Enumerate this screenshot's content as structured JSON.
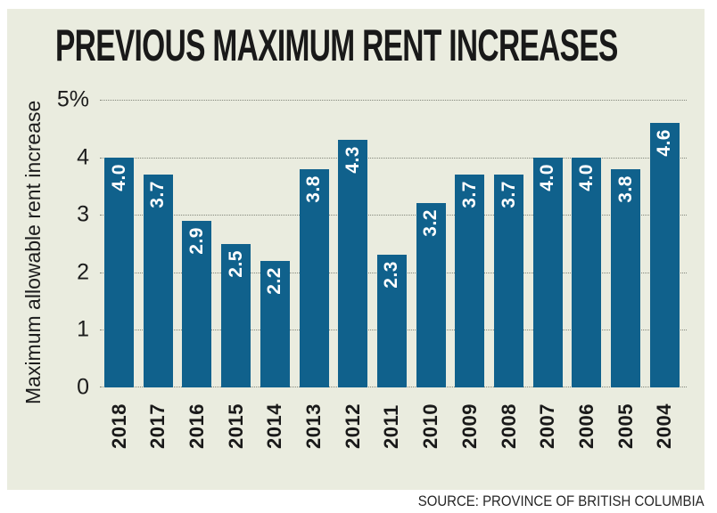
{
  "title": "PREVIOUS MAXIMUM RENT INCREASES",
  "source": "SOURCE: PROVINCE OF BRITISH COLUMBIA",
  "chart_data": {
    "type": "bar",
    "title": "PREVIOUS MAXIMUM RENT INCREASES",
    "categories": [
      "2018",
      "2017",
      "2016",
      "2015",
      "2014",
      "2013",
      "2012",
      "2011",
      "2010",
      "2009",
      "2008",
      "2007",
      "2006",
      "2005",
      "2004"
    ],
    "values": [
      4.0,
      3.7,
      2.9,
      2.5,
      2.2,
      3.8,
      4.3,
      2.3,
      3.2,
      3.7,
      3.7,
      4.0,
      4.0,
      3.8,
      4.6
    ],
    "value_labels": [
      "4.0",
      "3.7",
      "2.9",
      "2.5",
      "2.2",
      "3.8",
      "4.3",
      "2.3",
      "3.2",
      "3.7",
      "3.7",
      "4.0",
      "4.0",
      "3.8",
      "4.6"
    ],
    "xlabel": "",
    "ylabel": "Maximum allowable rent increase",
    "ylim": [
      0,
      5
    ],
    "yticks": [
      {
        "value": 5,
        "label": "5%"
      },
      {
        "value": 4,
        "label": "4"
      },
      {
        "value": 3,
        "label": "3"
      },
      {
        "value": 2,
        "label": "2"
      },
      {
        "value": 1,
        "label": "1"
      },
      {
        "value": 0,
        "label": "0"
      }
    ],
    "grid": "horizontal-dotted",
    "legend": "none",
    "colors": {
      "bar": "#10618c",
      "value_label": "#ffffff",
      "background": "#eaecdf",
      "gridline": "#83867b",
      "text": "#1a1a1a"
    }
  }
}
